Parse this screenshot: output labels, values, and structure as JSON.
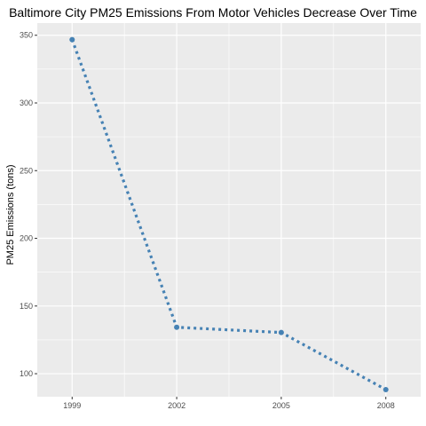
{
  "chart_data": {
    "type": "line",
    "title": "Baltimore City PM25 Emissions From Motor Vehicles Decrease Over Time",
    "xlabel": "",
    "ylabel": "PM25 Emissions (tons)",
    "x": [
      1999,
      2002,
      2005,
      2008
    ],
    "series": [
      {
        "values": [
          346.82,
          134.31,
          130.43,
          88.28
        ]
      }
    ],
    "xlim": [
      1998,
      2009
    ],
    "ylim": [
      83,
      359
    ],
    "x_ticks": [
      1999,
      2002,
      2005,
      2008
    ],
    "y_ticks": [
      100,
      150,
      200,
      250,
      300,
      350
    ],
    "grid": true,
    "line_style": "dotted",
    "colors": {
      "series": "#4682B4",
      "panel": "#EBEBEB",
      "grid": "#FFFFFF"
    }
  }
}
